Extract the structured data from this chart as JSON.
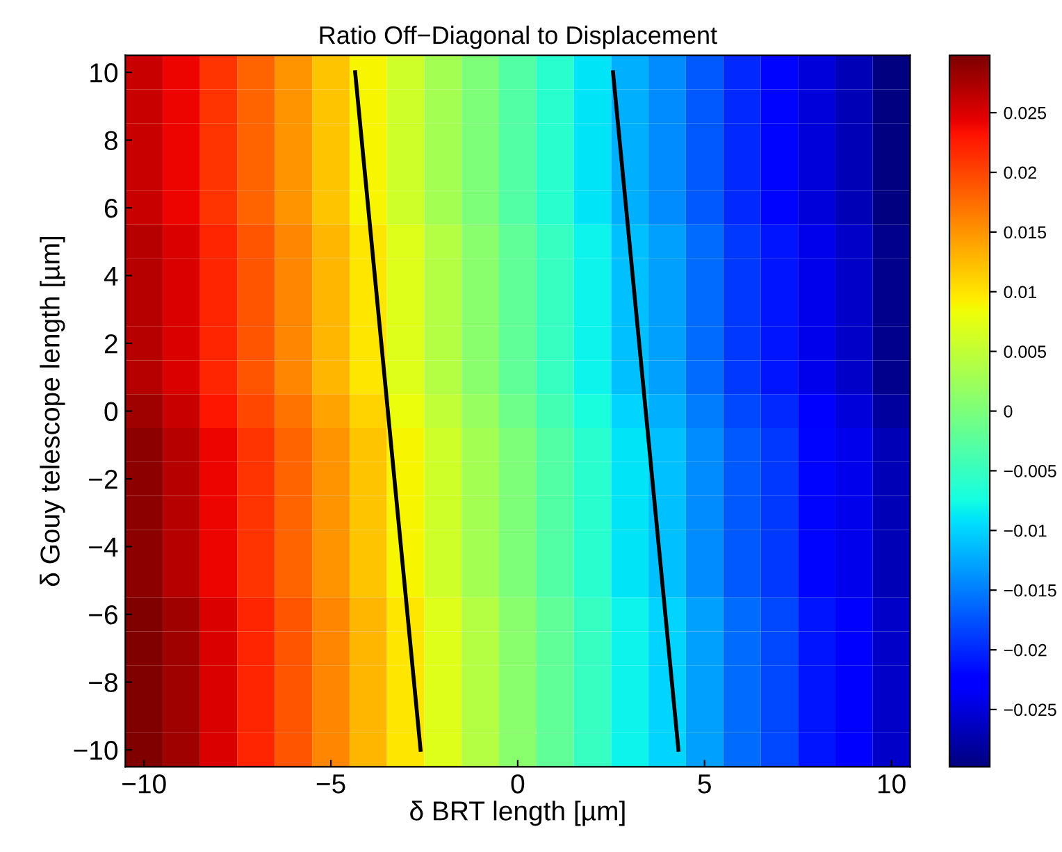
{
  "chart_data": {
    "type": "heatmap",
    "title": "Ratio Off−Diagonal to Displacement",
    "xlabel": "δ BRT length [µm]",
    "ylabel": "δ Gouy telescope length [µm]",
    "x": [
      -10,
      -9,
      -8,
      -7,
      -6,
      -5,
      -4,
      -3,
      -2,
      -1,
      0,
      1,
      2,
      3,
      4,
      5,
      6,
      7,
      8,
      9,
      10
    ],
    "y": [
      10,
      9,
      8,
      7,
      6,
      5,
      4,
      3,
      2,
      1,
      0,
      -1,
      -2,
      -3,
      -4,
      -5,
      -6,
      -7,
      -8,
      -9,
      -10
    ],
    "cells": [
      [
        0.026,
        0.024,
        0.021,
        0.018,
        0.015,
        0.012,
        0.009,
        0.006,
        0.003,
        0.0,
        -0.003,
        -0.006,
        -0.009,
        -0.012,
        -0.014,
        -0.017,
        -0.02,
        -0.022,
        -0.025,
        -0.027,
        -0.03
      ],
      [
        0.026,
        0.024,
        0.021,
        0.018,
        0.015,
        0.012,
        0.009,
        0.006,
        0.003,
        0.0,
        -0.003,
        -0.006,
        -0.009,
        -0.012,
        -0.014,
        -0.017,
        -0.02,
        -0.022,
        -0.025,
        -0.027,
        -0.03
      ],
      [
        0.026,
        0.024,
        0.021,
        0.018,
        0.015,
        0.012,
        0.009,
        0.006,
        0.003,
        0.0,
        -0.003,
        -0.006,
        -0.009,
        -0.012,
        -0.014,
        -0.017,
        -0.02,
        -0.022,
        -0.025,
        -0.027,
        -0.03
      ],
      [
        0.026,
        0.024,
        0.021,
        0.018,
        0.015,
        0.012,
        0.009,
        0.006,
        0.003,
        0.0,
        -0.003,
        -0.006,
        -0.009,
        -0.012,
        -0.014,
        -0.017,
        -0.02,
        -0.022,
        -0.025,
        -0.027,
        -0.03
      ],
      [
        0.026,
        0.024,
        0.021,
        0.018,
        0.015,
        0.012,
        0.009,
        0.006,
        0.003,
        0.0,
        -0.003,
        -0.006,
        -0.009,
        -0.012,
        -0.014,
        -0.017,
        -0.02,
        -0.022,
        -0.025,
        -0.027,
        -0.03
      ],
      [
        0.027,
        0.025,
        0.022,
        0.019,
        0.016,
        0.013,
        0.01,
        0.007,
        0.004,
        0.001,
        -0.002,
        -0.005,
        -0.008,
        -0.011,
        -0.013,
        -0.016,
        -0.019,
        -0.021,
        -0.024,
        -0.026,
        -0.029
      ],
      [
        0.027,
        0.025,
        0.022,
        0.019,
        0.016,
        0.013,
        0.01,
        0.007,
        0.004,
        0.001,
        -0.002,
        -0.005,
        -0.008,
        -0.011,
        -0.013,
        -0.016,
        -0.019,
        -0.021,
        -0.024,
        -0.026,
        -0.029
      ],
      [
        0.027,
        0.025,
        0.022,
        0.019,
        0.016,
        0.013,
        0.01,
        0.007,
        0.004,
        0.001,
        -0.002,
        -0.005,
        -0.008,
        -0.011,
        -0.013,
        -0.016,
        -0.019,
        -0.021,
        -0.024,
        -0.026,
        -0.029
      ],
      [
        0.027,
        0.025,
        0.022,
        0.019,
        0.016,
        0.013,
        0.01,
        0.007,
        0.004,
        0.001,
        -0.002,
        -0.005,
        -0.008,
        -0.011,
        -0.013,
        -0.016,
        -0.019,
        -0.021,
        -0.024,
        -0.026,
        -0.029
      ],
      [
        0.027,
        0.025,
        0.022,
        0.019,
        0.016,
        0.013,
        0.01,
        0.007,
        0.004,
        0.001,
        -0.002,
        -0.005,
        -0.008,
        -0.011,
        -0.013,
        -0.016,
        -0.019,
        -0.021,
        -0.024,
        -0.026,
        -0.029
      ],
      [
        0.028,
        0.026,
        0.023,
        0.02,
        0.017,
        0.014,
        0.011,
        0.008,
        0.005,
        0.002,
        -0.001,
        -0.004,
        -0.007,
        -0.01,
        -0.012,
        -0.015,
        -0.018,
        -0.02,
        -0.023,
        -0.025,
        -0.028
      ],
      [
        0.029,
        0.027,
        0.024,
        0.021,
        0.018,
        0.015,
        0.012,
        0.009,
        0.006,
        0.003,
        0.0,
        -0.003,
        -0.006,
        -0.009,
        -0.011,
        -0.014,
        -0.017,
        -0.019,
        -0.022,
        -0.024,
        -0.027
      ],
      [
        0.029,
        0.027,
        0.024,
        0.021,
        0.018,
        0.015,
        0.012,
        0.009,
        0.006,
        0.003,
        0.0,
        -0.003,
        -0.006,
        -0.009,
        -0.011,
        -0.014,
        -0.017,
        -0.019,
        -0.022,
        -0.024,
        -0.027
      ],
      [
        0.029,
        0.027,
        0.024,
        0.021,
        0.018,
        0.015,
        0.012,
        0.009,
        0.006,
        0.003,
        0.0,
        -0.003,
        -0.006,
        -0.009,
        -0.011,
        -0.014,
        -0.017,
        -0.019,
        -0.022,
        -0.024,
        -0.027
      ],
      [
        0.029,
        0.027,
        0.024,
        0.021,
        0.018,
        0.015,
        0.012,
        0.009,
        0.006,
        0.003,
        0.0,
        -0.003,
        -0.006,
        -0.009,
        -0.011,
        -0.014,
        -0.017,
        -0.019,
        -0.022,
        -0.024,
        -0.027
      ],
      [
        0.029,
        0.027,
        0.024,
        0.021,
        0.018,
        0.015,
        0.012,
        0.009,
        0.006,
        0.003,
        0.0,
        -0.003,
        -0.006,
        -0.009,
        -0.011,
        -0.014,
        -0.017,
        -0.019,
        -0.022,
        -0.024,
        -0.027
      ],
      [
        0.03,
        0.028,
        0.025,
        0.022,
        0.019,
        0.016,
        0.013,
        0.01,
        0.007,
        0.004,
        0.001,
        -0.002,
        -0.005,
        -0.008,
        -0.01,
        -0.013,
        -0.016,
        -0.018,
        -0.021,
        -0.023,
        -0.026
      ],
      [
        0.03,
        0.028,
        0.025,
        0.022,
        0.019,
        0.016,
        0.013,
        0.01,
        0.007,
        0.004,
        0.001,
        -0.002,
        -0.005,
        -0.008,
        -0.01,
        -0.013,
        -0.016,
        -0.018,
        -0.021,
        -0.023,
        -0.026
      ],
      [
        0.03,
        0.028,
        0.025,
        0.022,
        0.019,
        0.016,
        0.013,
        0.01,
        0.007,
        0.004,
        0.001,
        -0.002,
        -0.005,
        -0.008,
        -0.01,
        -0.013,
        -0.016,
        -0.018,
        -0.021,
        -0.023,
        -0.026
      ],
      [
        0.03,
        0.028,
        0.025,
        0.022,
        0.019,
        0.016,
        0.013,
        0.01,
        0.007,
        0.004,
        0.001,
        -0.002,
        -0.005,
        -0.008,
        -0.01,
        -0.013,
        -0.016,
        -0.018,
        -0.021,
        -0.023,
        -0.026
      ],
      [
        0.03,
        0.028,
        0.025,
        0.022,
        0.019,
        0.016,
        0.013,
        0.01,
        0.007,
        0.004,
        0.001,
        -0.002,
        -0.005,
        -0.008,
        -0.01,
        -0.013,
        -0.016,
        -0.018,
        -0.021,
        -0.023,
        -0.026
      ]
    ],
    "series": [
      {
        "type": "line",
        "color": "#000000",
        "x": [
          -4.35,
          -2.6
        ],
        "values": [
          10,
          -10
        ]
      },
      {
        "type": "line",
        "color": "#000000",
        "x": [
          2.55,
          4.3
        ],
        "values": [
          10,
          -10
        ]
      }
    ],
    "xlim": [
      -10.5,
      10.5
    ],
    "ylim": [
      -10.5,
      10.5
    ],
    "xticks": [
      -10,
      -5,
      0,
      5,
      10
    ],
    "yticks": [
      -10,
      -8,
      -6,
      -4,
      -2,
      0,
      2,
      4,
      6,
      8,
      10
    ],
    "clim": [
      -0.0298,
      0.0298
    ],
    "cticks": [
      -0.025,
      -0.02,
      -0.015,
      -0.01,
      -0.005,
      0,
      0.005,
      0.01,
      0.015,
      0.02,
      0.025
    ],
    "grid": false
  }
}
